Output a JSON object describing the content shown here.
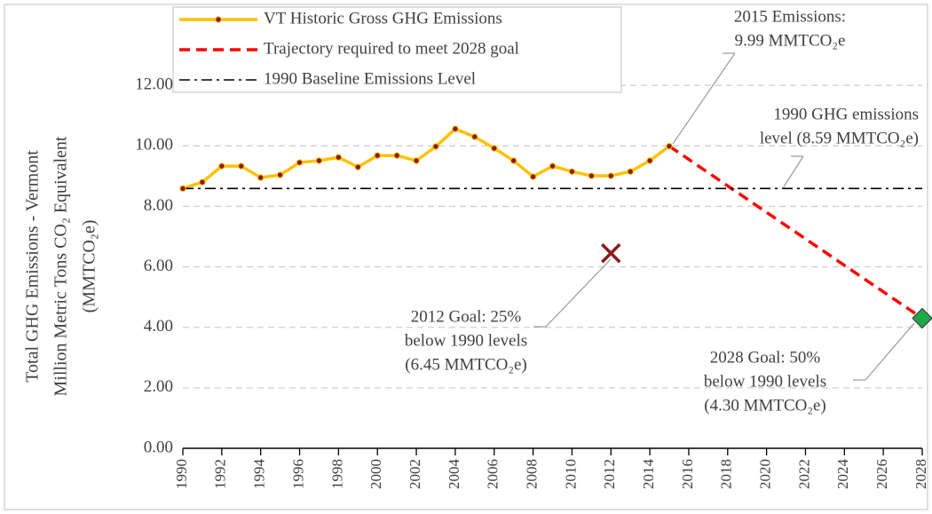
{
  "chart_data": {
    "type": "line",
    "ylabel": [
      "Total GHG Emissions - Vermont",
      "Million Metric Tons CO₂ Equivalent",
      "(MMTCO₂e)"
    ],
    "xlim": [
      1990,
      2028
    ],
    "xticks": [
      1990,
      1992,
      1994,
      1996,
      1998,
      2000,
      2002,
      2004,
      2006,
      2008,
      2010,
      2012,
      2014,
      2016,
      2018,
      2020,
      2022,
      2024,
      2026,
      2028
    ],
    "ylim": [
      0,
      14.5
    ],
    "yticks": [
      {
        "value": 0,
        "label": "0.00"
      },
      {
        "value": 2,
        "label": "2.00"
      },
      {
        "value": 4,
        "label": "4.00"
      },
      {
        "value": 6,
        "label": "6.00"
      },
      {
        "value": 8,
        "label": "8.00"
      },
      {
        "value": 10,
        "label": "10.00"
      },
      {
        "value": 12,
        "label": "12.00"
      }
    ],
    "grid": true,
    "series": [
      {
        "name": "VT Historic Gross GHG Emissions",
        "color": "#ffc000",
        "marker_color": "#8b1a1a",
        "style": "solid",
        "x": [
          1990,
          1991,
          1992,
          1993,
          1994,
          1995,
          1996,
          1997,
          1998,
          1999,
          2000,
          2001,
          2002,
          2003,
          2004,
          2005,
          2006,
          2007,
          2008,
          2009,
          2010,
          2011,
          2012,
          2013,
          2014,
          2015
        ],
        "values": [
          8.59,
          8.8,
          9.33,
          9.33,
          8.95,
          9.04,
          9.45,
          9.51,
          9.62,
          9.3,
          9.68,
          9.68,
          9.51,
          9.98,
          10.56,
          10.3,
          9.92,
          9.51,
          8.98,
          9.33,
          9.15,
          9.01,
          9.01,
          9.15,
          9.51,
          9.99
        ]
      },
      {
        "name": "Trajectory required to meet 2028 goal",
        "color": "#ff0000",
        "style": "dash",
        "x": [
          2015,
          2028
        ],
        "values": [
          9.99,
          4.3
        ]
      },
      {
        "name": "1990 Baseline Emissions  Level",
        "color": "#000000",
        "style": "dashdot",
        "x": [
          1990,
          2028
        ],
        "values": [
          8.59,
          8.59
        ]
      }
    ],
    "points": [
      {
        "x": 2012,
        "value": 6.45,
        "marker": "x",
        "color": "#8b1a1a"
      },
      {
        "x": 2028,
        "value": 4.3,
        "marker": "diamond",
        "color": "#1fa84a"
      }
    ],
    "annotations": [
      {
        "lines": [
          "2015 Emissions:",
          "9.99 MMTCO₂e"
        ]
      },
      {
        "lines": [
          "1990 GHG emissions",
          "level (8.59 MMTCO₂e)"
        ]
      },
      {
        "lines": [
          "2012 Goal: 25%",
          "below 1990 levels",
          "(6.45 MMTCO₂e)"
        ]
      },
      {
        "lines": [
          "2028 Goal: 50%",
          "below 1990 levels",
          "(4.30 MMTCO₂e)"
        ]
      }
    ]
  }
}
